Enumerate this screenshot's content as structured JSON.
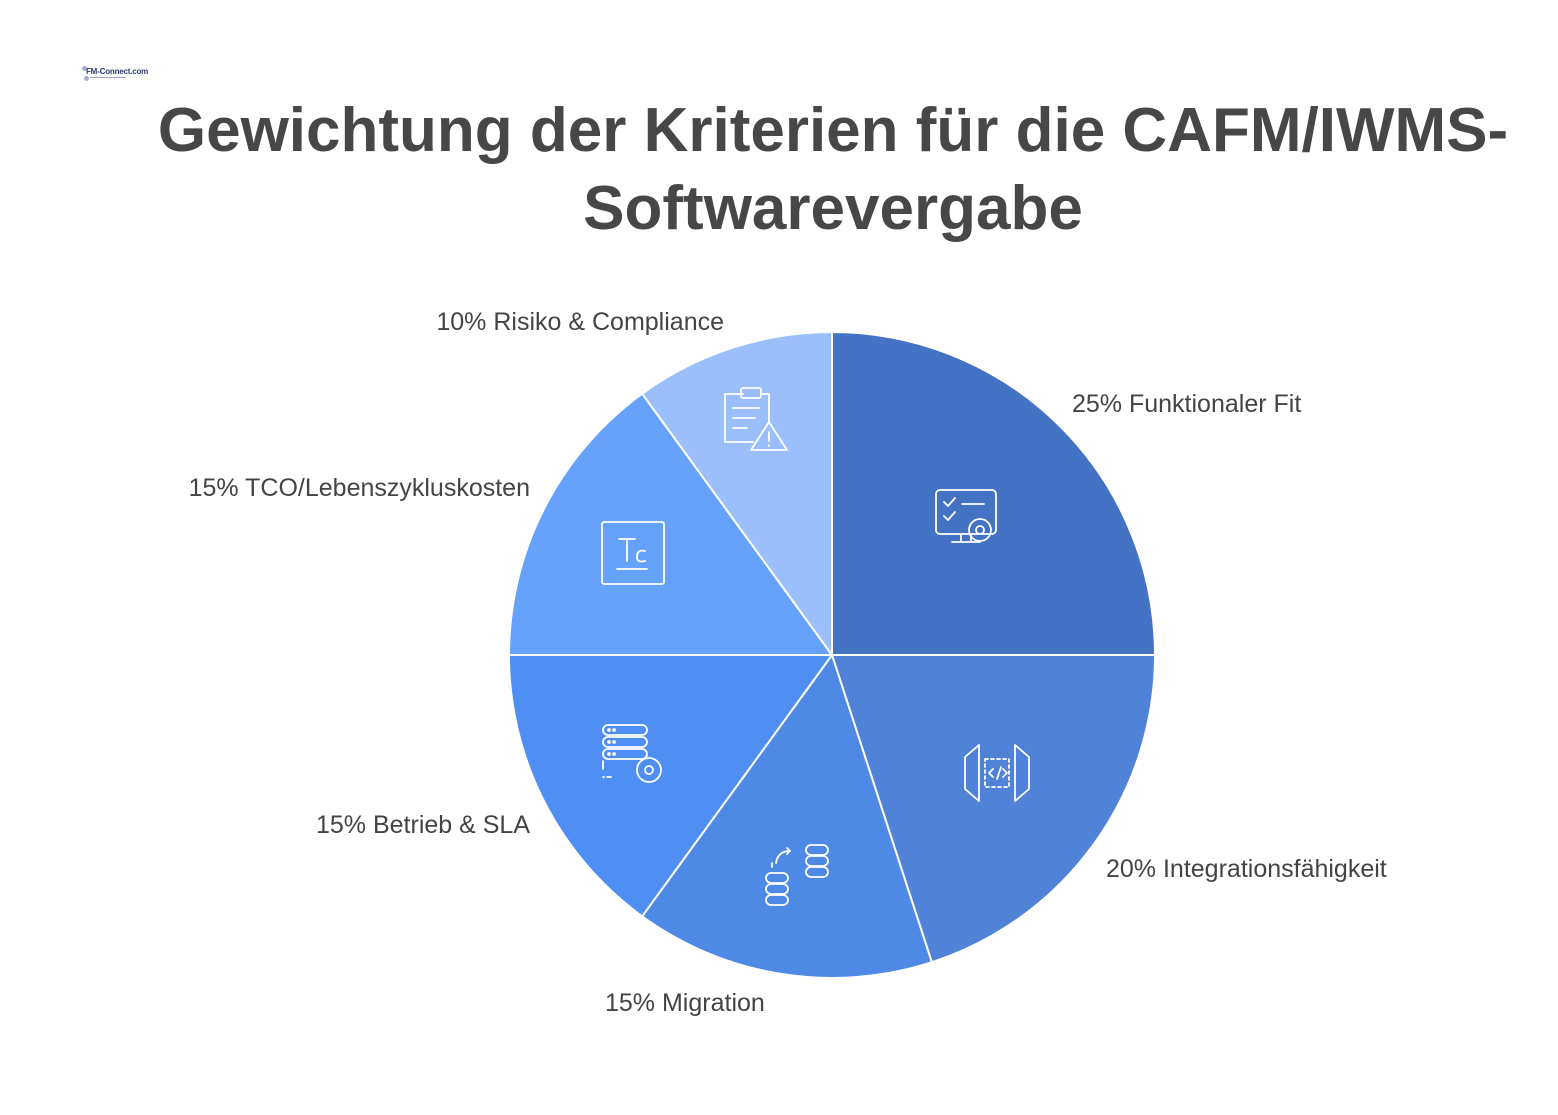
{
  "logo": {
    "text": "FM-Connect.com"
  },
  "title": {
    "line1": "Gewichtung der Kriterien für die CAFM/IWMS-",
    "line2": "Softwarevergabe"
  },
  "chart_data": {
    "type": "pie",
    "title": "Gewichtung der Kriterien für die CAFM/IWMS-Softwarevergabe",
    "unit": "%",
    "slices": [
      {
        "label": "Funktionaler Fit",
        "value": 25,
        "text": "25% Funktionaler Fit",
        "color": "#4472C4",
        "icon": "monitor-checklist-gear-icon"
      },
      {
        "label": "Integrationsfähigkeit",
        "value": 20,
        "text": "20% Integrationsfähigkeit",
        "color": "#5083D8",
        "icon": "code-integration-icon"
      },
      {
        "label": "Migration",
        "value": 15,
        "text": "15% Migration",
        "color": "#4F89E6",
        "icon": "database-transfer-icon"
      },
      {
        "label": "Betrieb & SLA",
        "value": 15,
        "text": "15% Betrieb & SLA",
        "color": "#4F8FF4",
        "icon": "server-gear-icon"
      },
      {
        "label": "TCO/Lebenszykluskosten",
        "value": 15,
        "text": "15% TCO/Lebenszykluskosten",
        "color": "#66A2FB",
        "icon": "tco-cost-icon"
      },
      {
        "label": "Risiko & Compliance",
        "value": 10,
        "text": "10% Risiko & Compliance",
        "color": "#9BBFFB",
        "icon": "clipboard-warning-icon"
      }
    ],
    "start": "12 o'clock",
    "direction": "clockwise",
    "legend": "none (labels beside slices)"
  }
}
